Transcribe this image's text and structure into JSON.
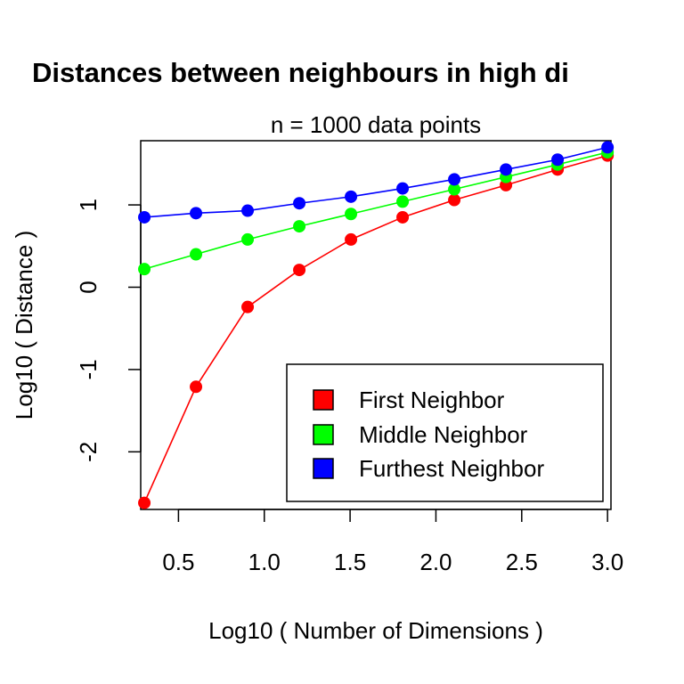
{
  "chart_data": {
    "type": "line",
    "title": "Distances between neighbours in high di",
    "subtitle": "n = 1000 data points",
    "xlabel": "Log10 ( Number of Dimensions )",
    "ylabel": "Log10 ( Distance )",
    "xlim": [
      0.28,
      3.02
    ],
    "ylim": [
      -2.7,
      1.78
    ],
    "xticks": [
      0.5,
      1.0,
      1.5,
      2.0,
      2.5,
      3.0
    ],
    "xtick_labels": [
      "0.5",
      "1.0",
      "1.5",
      "2.0",
      "2.5",
      "3.0"
    ],
    "yticks": [
      -2,
      -1,
      0,
      1
    ],
    "ytick_labels": [
      "-2",
      "-1",
      "0",
      "1"
    ],
    "grid": false,
    "legend_position": "bottom-right",
    "x": [
      0.301,
      0.602,
      0.903,
      1.204,
      1.505,
      1.806,
      2.107,
      2.408,
      2.709,
      3.0
    ],
    "series": [
      {
        "name": "First Neighbor",
        "color": "#ff0000",
        "values": [
          -2.62,
          -1.21,
          -0.24,
          0.21,
          0.58,
          0.85,
          1.06,
          1.24,
          1.43,
          1.6
        ]
      },
      {
        "name": "Middle Neighbor",
        "color": "#00ff00",
        "values": [
          0.22,
          0.4,
          0.58,
          0.74,
          0.89,
          1.04,
          1.19,
          1.34,
          1.49,
          1.64
        ]
      },
      {
        "name": "Furthest Neighbor",
        "color": "#0000ff",
        "values": [
          0.85,
          0.9,
          0.93,
          1.02,
          1.1,
          1.2,
          1.31,
          1.43,
          1.55,
          1.7
        ]
      }
    ]
  }
}
